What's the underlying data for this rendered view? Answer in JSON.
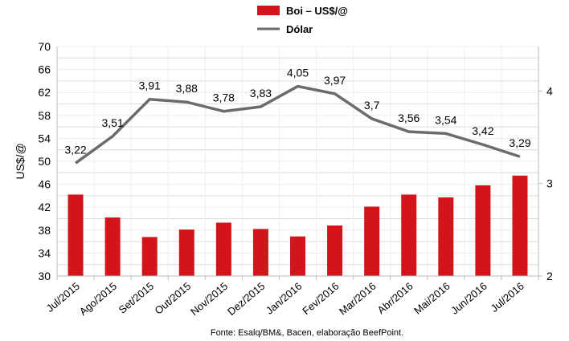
{
  "chart_data": {
    "type": "bar+line",
    "legend": [
      "Boi – US$/@",
      "Dólar"
    ],
    "legend_placement": "top-center",
    "categories": [
      "Jul/2015",
      "Ago/2015",
      "Set/2015",
      "Out/2015",
      "Nov/2015",
      "Dez/2015",
      "Jan/2016",
      "Fev/2016",
      "Mar/2016",
      "Abr/2016",
      "Mai/2016",
      "Jun/2016",
      "Jul/2016"
    ],
    "series": [
      {
        "name": "Boi – US$/@",
        "type": "bar",
        "axis": "left",
        "color": "#d3151b",
        "values": [
          44.2,
          40.2,
          36.8,
          38.1,
          39.3,
          38.2,
          36.9,
          38.8,
          42.1,
          44.2,
          43.7,
          45.8,
          47.5
        ]
      },
      {
        "name": "Dólar",
        "type": "line",
        "axis": "right",
        "color": "#6b6b6b",
        "values": [
          3.22,
          3.51,
          3.91,
          3.88,
          3.78,
          3.83,
          4.05,
          3.97,
          3.7,
          3.56,
          3.54,
          3.42,
          3.29
        ],
        "labels": [
          "3,22",
          "3,51",
          "3,91",
          "3,88",
          "3,78",
          "3,83",
          "4,05",
          "3,97",
          "3,7",
          "3,56",
          "3,54",
          "3,42",
          "3,29"
        ]
      }
    ],
    "ylabel": "US$/@",
    "ylim": [
      30,
      70
    ],
    "yticks": [
      "30",
      "34",
      "38",
      "42",
      "46",
      "50",
      "54",
      "58",
      "62",
      "66",
      "70"
    ],
    "y2lim": [
      2,
      4.48
    ],
    "y2ticks": [
      "2",
      "3",
      "4"
    ],
    "grid": true,
    "source": "Fonte: Esalq/BM&, Bacen, elaboração BeefPoint."
  }
}
